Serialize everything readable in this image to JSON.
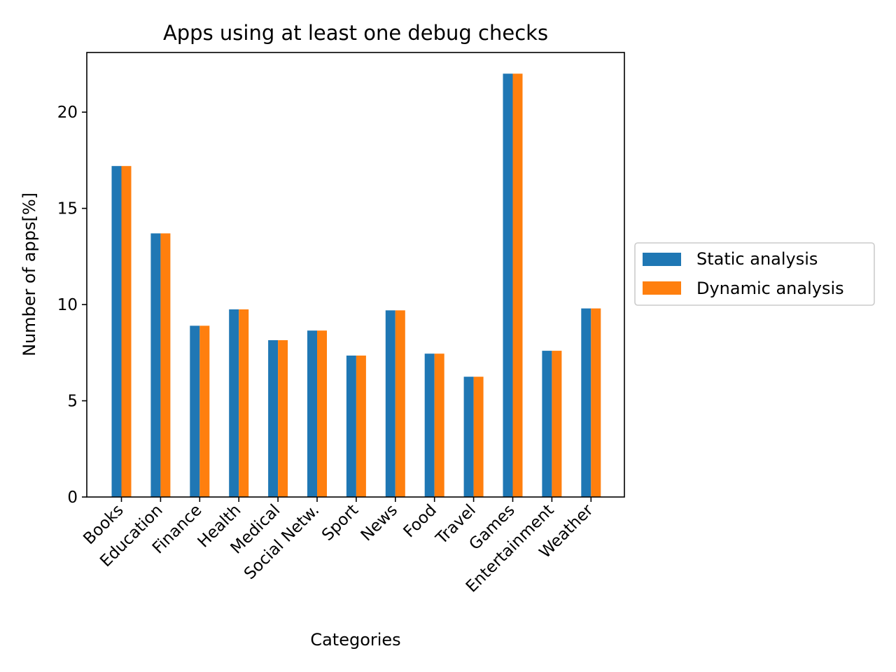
{
  "chart_data": {
    "type": "bar",
    "title": "Apps using at least one debug checks",
    "xlabel": "Categories",
    "ylabel": "Number of apps[%]",
    "categories": [
      "Books",
      "Education",
      "Finance",
      "Health",
      "Medical",
      "Social Netw.",
      "Sport",
      "News",
      "Food",
      "Travel",
      "Games",
      "Entertainment",
      "Weather"
    ],
    "series": [
      {
        "name": "Static analysis",
        "color": "#1f77b4",
        "values": [
          17.2,
          13.7,
          8.9,
          9.75,
          8.15,
          8.65,
          7.35,
          9.7,
          7.45,
          6.25,
          22.0,
          7.6,
          9.8
        ]
      },
      {
        "name": "Dynamic analysis",
        "color": "#ff7f0e",
        "values": [
          17.2,
          13.7,
          8.9,
          9.75,
          8.15,
          8.65,
          7.35,
          9.7,
          7.45,
          6.25,
          22.0,
          7.6,
          9.8
        ]
      }
    ],
    "ylim": [
      0,
      23.1
    ],
    "yticks": [
      0,
      5,
      10,
      15,
      20
    ],
    "grid": false,
    "legend_position": "right-outside"
  }
}
